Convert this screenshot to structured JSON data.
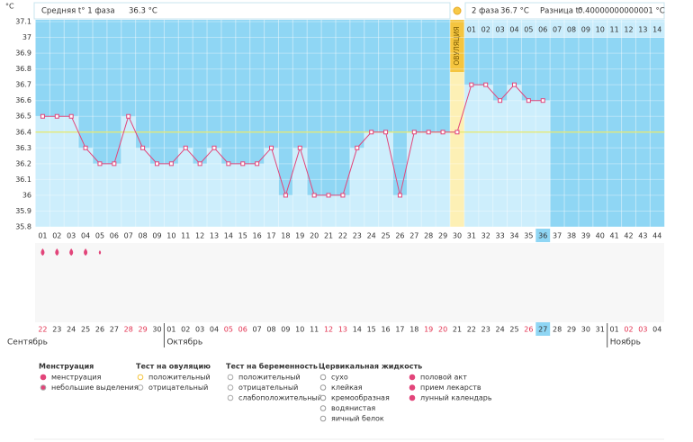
{
  "summary": {
    "phase1_label": "Средняя t° 1 фаза",
    "phase1_value": "36.3 °C",
    "phase2_label": "2 фаза",
    "phase2_value": "36.7 °C",
    "diff_label": "Разница t°",
    "diff_value": "0.40000000000001 °C"
  },
  "chart_data": {
    "type": "line",
    "y_unit": "°C",
    "color": "#e2457a",
    "categories": [
      "01",
      "02",
      "03",
      "04",
      "05",
      "06",
      "07",
      "08",
      "09",
      "10",
      "11",
      "12",
      "13",
      "14",
      "15",
      "16",
      "17",
      "18",
      "19",
      "20",
      "21",
      "22",
      "23",
      "24",
      "25",
      "26",
      "27",
      "28",
      "29",
      "30",
      "31",
      "32",
      "33",
      "34",
      "35",
      "36",
      "37",
      "38",
      "39",
      "40",
      "41",
      "42",
      "43",
      "44"
    ],
    "values": [
      36.5,
      36.5,
      36.5,
      36.3,
      36.2,
      36.2,
      36.5,
      36.3,
      36.2,
      36.2,
      36.3,
      36.2,
      36.3,
      36.2,
      36.2,
      36.2,
      36.3,
      36.0,
      36.3,
      36.0,
      36.0,
      36.0,
      36.3,
      36.4,
      36.4,
      36.0,
      36.4,
      36.4,
      36.4,
      36.4,
      36.7,
      36.7,
      36.6,
      36.7,
      36.6,
      36.6,
      null,
      null,
      null,
      null,
      null,
      null,
      null,
      null
    ],
    "ylim": [
      35.8,
      37.1
    ],
    "yticks": [
      35.8,
      35.9,
      36,
      36.1,
      36.2,
      36.3,
      36.4,
      36.5,
      36.6,
      36.7,
      36.8,
      36.9,
      37,
      37.1
    ],
    "cover_line": 36.4,
    "ovulation_day": 30,
    "ovulation_label": "ОВУЛЯЦИЯ",
    "current_day": 36,
    "phase2_days": [
      "01",
      "02",
      "03",
      "04",
      "05",
      "06",
      "07",
      "08",
      "09",
      "10",
      "11",
      "12",
      "13",
      "14"
    ]
  },
  "calendar": {
    "months": [
      {
        "name": "Сентябрь",
        "dates": [
          "22",
          "23",
          "24",
          "25",
          "26",
          "27",
          "28",
          "29",
          "30"
        ],
        "weekend": [
          true,
          false,
          false,
          false,
          false,
          false,
          true,
          true,
          false
        ]
      },
      {
        "name": "Октябрь",
        "dates": [
          "01",
          "02",
          "03",
          "04",
          "05",
          "06",
          "07",
          "08",
          "09",
          "10",
          "11",
          "12",
          "13",
          "14",
          "15",
          "16",
          "17",
          "18",
          "19",
          "20",
          "21",
          "22",
          "23",
          "24",
          "25",
          "26",
          "27",
          "28",
          "29",
          "30",
          "31"
        ],
        "weekend": [
          false,
          false,
          false,
          false,
          true,
          true,
          false,
          false,
          false,
          false,
          false,
          true,
          true,
          false,
          false,
          false,
          false,
          false,
          true,
          true,
          false,
          false,
          false,
          false,
          false,
          true,
          false,
          false,
          false,
          false,
          false
        ]
      },
      {
        "name": "Ноябрь",
        "dates": [
          "01",
          "02",
          "03",
          "04"
        ],
        "weekend": [
          false,
          true,
          true,
          false
        ]
      }
    ],
    "menstruation": [
      "heavy",
      "heavy",
      "heavy",
      "heavy",
      "light"
    ]
  },
  "legend": [
    {
      "title": "Менструация",
      "items": [
        "менструация",
        "небольшие выделения"
      ]
    },
    {
      "title": "Тест на овуляцию",
      "items": [
        "положительный",
        "отрицательный"
      ]
    },
    {
      "title": "Тест на беременность",
      "items": [
        "положительный",
        "отрицательный",
        "слабоположительный"
      ]
    },
    {
      "title": "Цервикальная жидкость",
      "items": [
        "сухо",
        "клейкая",
        "кремообразная",
        "водянистая",
        "яичный белок"
      ]
    },
    {
      "items": [
        "половой акт",
        "прием лекарств",
        "лунный календарь"
      ]
    }
  ]
}
